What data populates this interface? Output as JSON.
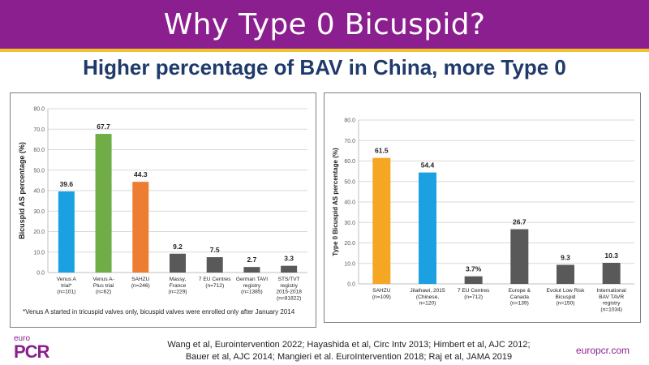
{
  "header": {
    "title": "Why Type 0 Bicuspid?",
    "subtitle": "Higher percentage of BAV in China, more Type 0"
  },
  "chart_data": [
    {
      "type": "bar",
      "title": "",
      "ylabel": "Bicuspid AS percentage (%)",
      "xlabel": "",
      "ylim": [
        0,
        80
      ],
      "yticks": [
        "0.0",
        "10.0",
        "20.0",
        "30.0",
        "40.0",
        "50.0",
        "60.0",
        "70.0",
        "80.0"
      ],
      "grid": true,
      "categories": [
        [
          "Venus A",
          "trial*",
          "(n=101)"
        ],
        [
          "Venus A-",
          "Plus trial",
          "(n=62)"
        ],
        [
          "SAHZU",
          "(n=246)"
        ],
        [
          "Massy,",
          "France",
          "(n=229)"
        ],
        [
          "7 EU Centres",
          "(n=712)"
        ],
        [
          "German TAVI",
          "registry",
          "(n=1385)"
        ],
        [
          "STS/TVT",
          "registry",
          "2015-2018",
          "(n=81822)"
        ]
      ],
      "values": [
        39.6,
        67.7,
        44.3,
        9.2,
        7.5,
        2.7,
        3.3
      ],
      "value_labels": [
        "39.6",
        "67.7",
        "44.3",
        "9.2",
        "7.5",
        "2.7",
        "3.3"
      ],
      "colors": [
        "#1ba1e2",
        "#70ad47",
        "#ed7d31",
        "#595959",
        "#595959",
        "#595959",
        "#595959"
      ],
      "footnote": "*Venus A started in tricuspid valves only, bicuspid valves were enrolled only after January 2014"
    },
    {
      "type": "bar",
      "title": "",
      "ylabel": "Type 0 Bicuspid AS percentage (%)",
      "xlabel": "",
      "ylim": [
        0,
        80
      ],
      "yticks": [
        "0.0",
        "10.0",
        "20.0",
        "30.0",
        "40.0",
        "50.0",
        "60.0",
        "70.0",
        "80.0"
      ],
      "grid": true,
      "categories": [
        [
          "SAHZU",
          "(n=109)"
        ],
        [
          "Jilaihawi, 2015",
          "(Chinese,",
          "n=120)"
        ],
        [
          "7 EU Centres",
          "(n=712)"
        ],
        [
          "Europe &",
          "Canada",
          "(n=139)"
        ],
        [
          "Evolut Low Risk",
          "Bicuspid",
          "(n=150)"
        ],
        [
          "International",
          "BAV TAVR",
          "registry",
          "(n=1034)"
        ]
      ],
      "values": [
        61.5,
        54.4,
        3.7,
        26.7,
        9.3,
        10.3
      ],
      "value_labels": [
        "61.5",
        "54.4",
        "3.7%",
        "26.7",
        "9.3",
        "10.3"
      ],
      "colors": [
        "#f5a623",
        "#1ba1e2",
        "#595959",
        "#595959",
        "#595959",
        "#595959"
      ]
    }
  ],
  "footer": {
    "logo_top": "euro",
    "logo_main": "PCR",
    "refs_line1": "Wang et al, Eurointervention 2022; Hayashida et al, Circ Intv 2013; Himbert et al, AJC 2012;",
    "refs_line2": "Bauer et al, AJC 2014; Mangieri et al. EuroIntervention 2018; Raj et al, JAMA 2019",
    "url": "europcr.com"
  }
}
